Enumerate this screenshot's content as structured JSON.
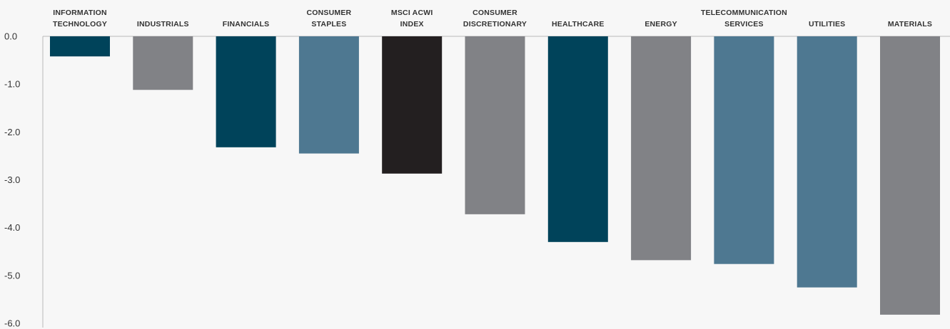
{
  "chart_data": {
    "type": "bar",
    "categories": [
      [
        "INFORMATION",
        "TECHNOLOGY"
      ],
      [
        "INDUSTRIALS"
      ],
      [
        "FINANCIALS"
      ],
      [
        "CONSUMER",
        "STAPLES"
      ],
      [
        "MSCI ACWI",
        "INDEX"
      ],
      [
        "CONSUMER",
        "DISCRETIONARY"
      ],
      [
        "HEALTHCARE"
      ],
      [
        "ENERGY"
      ],
      [
        "TELECOMMUNICATION",
        "SERVICES"
      ],
      [
        "UTILITIES"
      ],
      [
        "MATERIALS"
      ]
    ],
    "values": [
      -0.42,
      -1.12,
      -2.32,
      -2.45,
      -2.87,
      -3.72,
      -4.3,
      -4.68,
      -4.76,
      -5.25,
      -5.82
    ],
    "colors": [
      "#00435a",
      "#818286",
      "#00435a",
      "#4e7891",
      "#231f20",
      "#818286",
      "#00435a",
      "#818286",
      "#4e7891",
      "#4e7891",
      "#818286"
    ],
    "ylim": [
      -6.0,
      0.0
    ],
    "yticks": [
      "0.0",
      "-1.0",
      "-2.0",
      "-3.0",
      "-4.0",
      "-5.0",
      "-6.0"
    ],
    "title": "",
    "xlabel": "",
    "ylabel": "",
    "grid": false,
    "legend": "none"
  }
}
